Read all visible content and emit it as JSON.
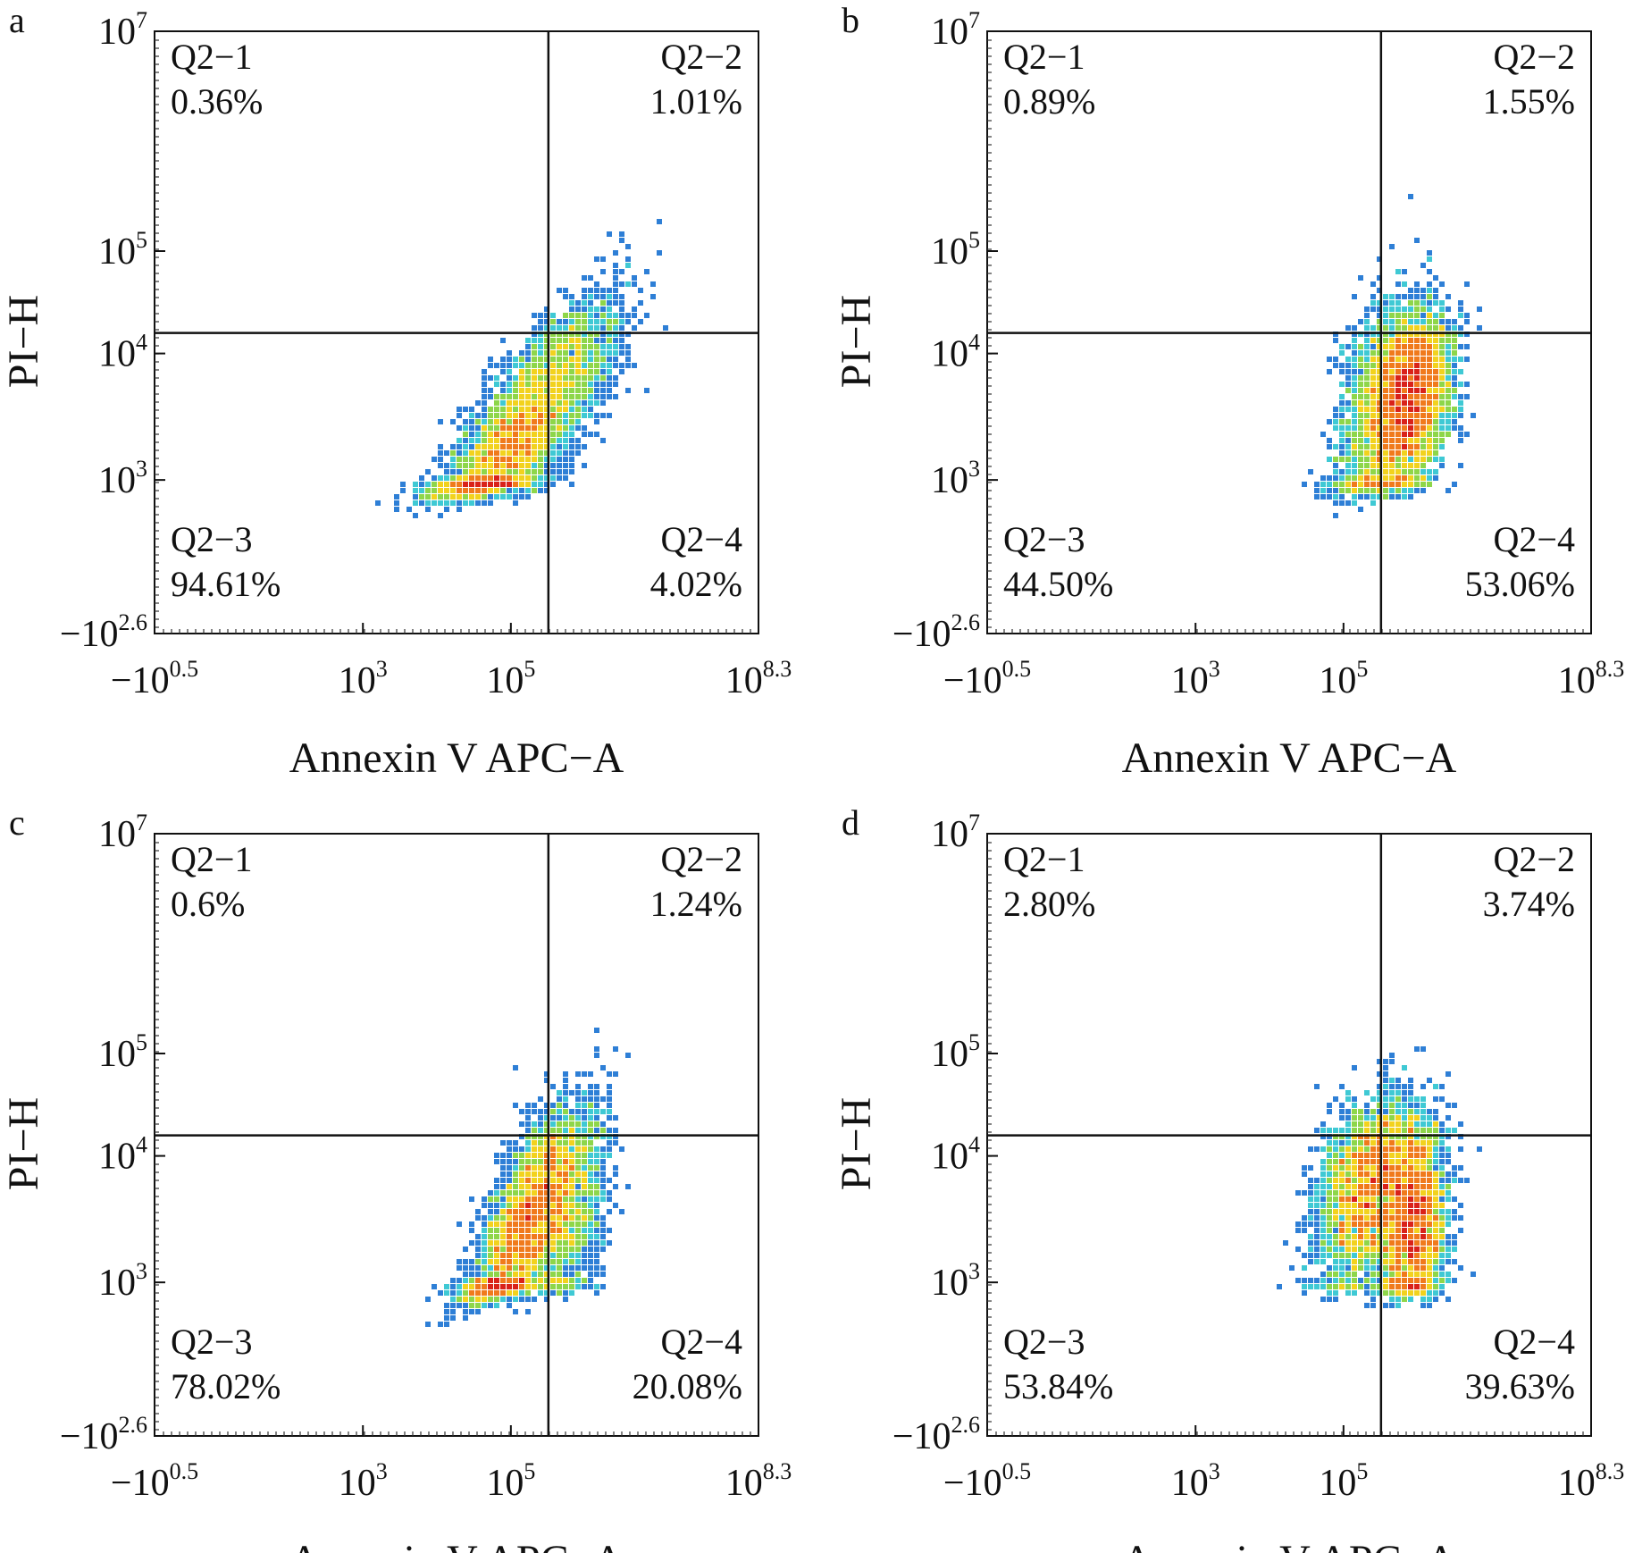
{
  "figure": {
    "x_axis_label": "Annexin V APC−A",
    "y_axis_label": "PI−H",
    "x_ticks": [
      {
        "base": "−10",
        "exp": "0.5",
        "value": -3.16
      },
      {
        "base": "10",
        "exp": "3",
        "value": 1000
      },
      {
        "base": "10",
        "exp": "5",
        "value": 100000
      },
      {
        "base": "10",
        "exp": "8.3",
        "value": 199526231
      }
    ],
    "y_ticks": [
      {
        "base": "10",
        "exp": "7",
        "value": 10000000
      },
      {
        "base": "10",
        "exp": "5",
        "value": 100000
      },
      {
        "base": "10",
        "exp": "4",
        "value": 10000
      },
      {
        "base": "10",
        "exp": "3",
        "value": 1000
      },
      {
        "base": "−10",
        "exp": "2.6",
        "value": -398
      }
    ],
    "density_colors": [
      "#1f3fa8",
      "#2e7fd6",
      "#3fc9d4",
      "#8ed64a",
      "#f2d21e",
      "#f07a1c",
      "#d9221a"
    ]
  },
  "chart_data": [
    {
      "panel": "a",
      "type": "scatter",
      "xlabel": "Annexin V APC−A",
      "ylabel": "PI−H",
      "x_scale": "biexponential",
      "y_scale": "biexponential",
      "gate": {
        "x": 316228,
        "y": 15849
      },
      "quadrants": [
        {
          "name": "Q2−1",
          "percent": "0.36%"
        },
        {
          "name": "Q2−2",
          "percent": "1.01%"
        },
        {
          "name": "Q2−3",
          "percent": "94.61%"
        },
        {
          "name": "Q2−4",
          "percent": "4.02%"
        }
      ],
      "clusters": [
        {
          "x_log": 5.05,
          "y_log": 3.3,
          "sx": 0.5,
          "sy": 0.42,
          "rho": 0.75,
          "weight": 0.85
        },
        {
          "x_log": 5.9,
          "y_log": 3.95,
          "sx": 0.38,
          "sy": 0.4,
          "rho": 0.55,
          "weight": 0.15
        }
      ]
    },
    {
      "panel": "b",
      "type": "scatter",
      "xlabel": "Annexin V APC−A",
      "ylabel": "PI−H",
      "x_scale": "biexponential",
      "y_scale": "biexponential",
      "gate": {
        "x": 316228,
        "y": 15849
      },
      "quadrants": [
        {
          "name": "Q2−1",
          "percent": "0.89%"
        },
        {
          "name": "Q2−2",
          "percent": "1.55%"
        },
        {
          "name": "Q2−3",
          "percent": "44.50%"
        },
        {
          "name": "Q2−4",
          "percent": "53.06%"
        }
      ],
      "clusters": [
        {
          "x_log": 5.55,
          "y_log": 3.55,
          "sx": 0.3,
          "sy": 0.45,
          "rho": 0.35,
          "weight": 0.45
        },
        {
          "x_log": 5.95,
          "y_log": 3.65,
          "sx": 0.25,
          "sy": 0.35,
          "rho": 0.3,
          "weight": 0.55
        }
      ]
    },
    {
      "panel": "c",
      "type": "scatter",
      "xlabel": "Annexin V APC−A",
      "ylabel": "PI−H",
      "x_scale": "biexponential",
      "y_scale": "biexponential",
      "gate": {
        "x": 316228,
        "y": 15849
      },
      "quadrants": [
        {
          "name": "Q2−1",
          "percent": "0.6%"
        },
        {
          "name": "Q2−2",
          "percent": "1.24%"
        },
        {
          "name": "Q2−3",
          "percent": "78.02%"
        },
        {
          "name": "Q2−4",
          "percent": "20.08%"
        }
      ],
      "clusters": [
        {
          "x_log": 5.2,
          "y_log": 3.45,
          "sx": 0.38,
          "sy": 0.48,
          "rho": 0.72,
          "weight": 0.78
        },
        {
          "x_log": 5.8,
          "y_log": 3.55,
          "sx": 0.26,
          "sy": 0.4,
          "rho": 0.4,
          "weight": 0.22
        }
      ]
    },
    {
      "panel": "d",
      "type": "scatter",
      "xlabel": "Annexin V APC−A",
      "ylabel": "PI−H",
      "x_scale": "biexponential",
      "y_scale": "biexponential",
      "gate": {
        "x": 316228,
        "y": 15849
      },
      "quadrants": [
        {
          "name": "Q2−1",
          "percent": "2.80%"
        },
        {
          "name": "Q2−2",
          "percent": "3.74%"
        },
        {
          "name": "Q2−3",
          "percent": "53.84%"
        },
        {
          "name": "Q2−4",
          "percent": "39.63%"
        }
      ],
      "clusters": [
        {
          "x_log": 5.35,
          "y_log": 3.75,
          "sx": 0.35,
          "sy": 0.4,
          "rho": 0.3,
          "weight": 0.55
        },
        {
          "x_log": 5.95,
          "y_log": 3.45,
          "sx": 0.22,
          "sy": 0.4,
          "rho": 0.2,
          "weight": 0.45
        }
      ]
    }
  ]
}
